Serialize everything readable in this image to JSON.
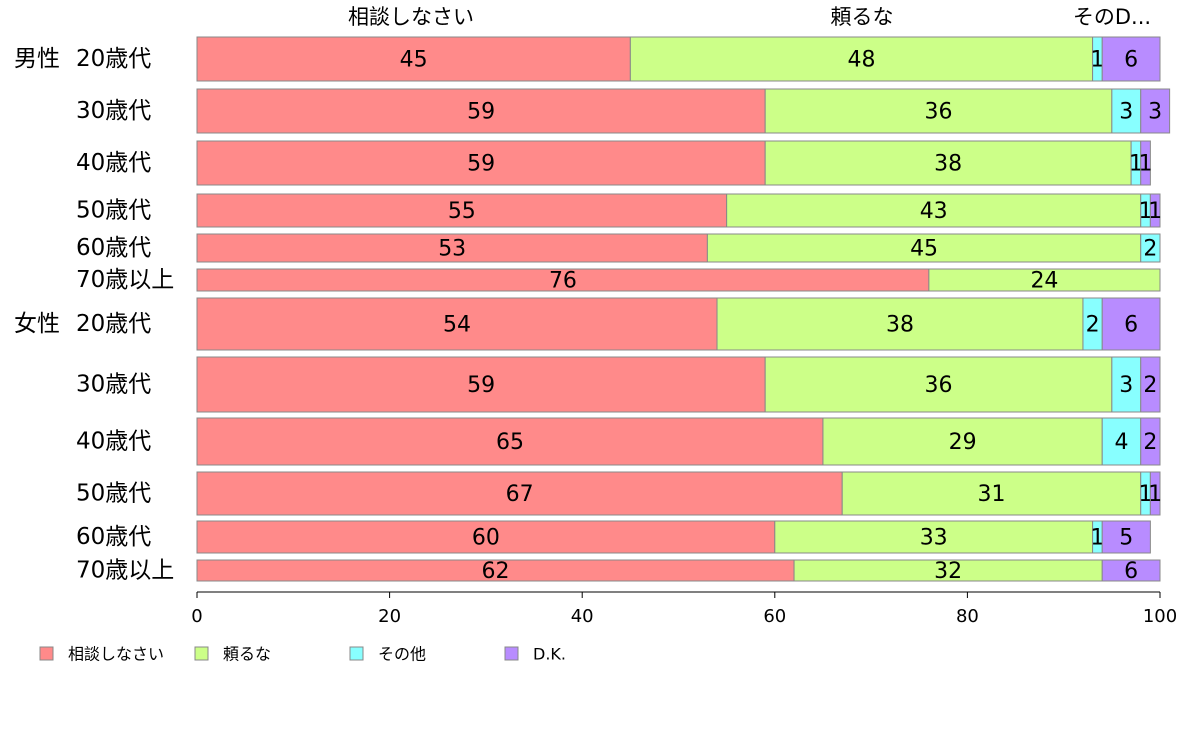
{
  "chart_data": {
    "type": "bar",
    "orientation": "horizontal",
    "stacked": true,
    "title": "",
    "xlabel": "",
    "ylabel": "",
    "xlim": [
      0,
      100
    ],
    "xticks": [
      0,
      20,
      40,
      60,
      80,
      100
    ],
    "grid": false,
    "legend_position": "bottom-left",
    "top_labels": [
      "相談しなさい",
      "頼るな",
      "そのD..."
    ],
    "groups": [
      {
        "name": "男性",
        "rows": [
          {
            "label": "20歳代",
            "values": [
              45,
              48,
              1,
              6
            ]
          },
          {
            "label": "30歳代",
            "values": [
              59,
              36,
              3,
              3
            ]
          },
          {
            "label": "40歳代",
            "values": [
              59,
              38,
              1,
              1
            ]
          },
          {
            "label": "50歳代",
            "values": [
              55,
              43,
              1,
              1
            ]
          },
          {
            "label": "60歳代",
            "values": [
              53,
              45,
              2,
              0
            ]
          },
          {
            "label": "70歳以上",
            "values": [
              76,
              24,
              0,
              0
            ]
          }
        ]
      },
      {
        "name": "女性",
        "rows": [
          {
            "label": "20歳代",
            "values": [
              54,
              38,
              2,
              6
            ]
          },
          {
            "label": "30歳代",
            "values": [
              59,
              36,
              3,
              2
            ]
          },
          {
            "label": "40歳代",
            "values": [
              65,
              29,
              4,
              2
            ]
          },
          {
            "label": "50歳代",
            "values": [
              67,
              31,
              1,
              1
            ]
          },
          {
            "label": "60歳代",
            "values": [
              60,
              33,
              1,
              5
            ]
          },
          {
            "label": "70歳以上",
            "values": [
              62,
              32,
              0,
              6
            ]
          }
        ]
      }
    ],
    "series": [
      {
        "name": "相談しなさい",
        "color": "#ff8a8a"
      },
      {
        "name": "頼るな",
        "color": "#ccff88"
      },
      {
        "name": "その他",
        "color": "#88ffff"
      },
      {
        "name": "D.K.",
        "color": "#b88cff"
      }
    ]
  }
}
